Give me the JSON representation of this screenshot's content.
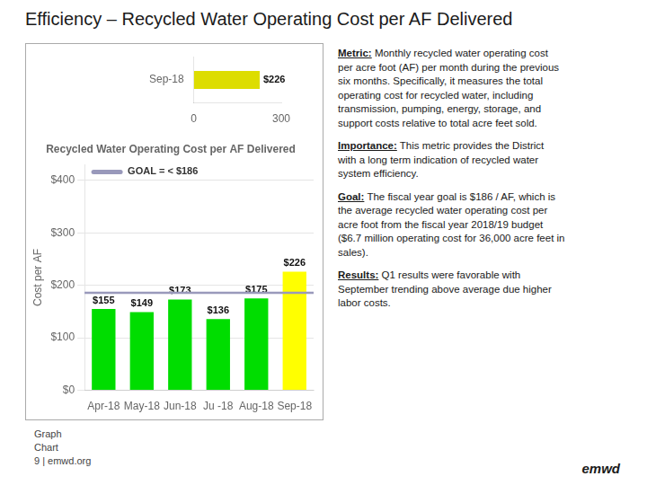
{
  "title": "Efficiency – Recycled Water Operating Cost per AF Delivered",
  "chart_data": [
    {
      "type": "bar",
      "title": "Recycled Water Operating Cost per AF Delivered",
      "categories": [
        "Apr-18",
        "May-18",
        "Jun-18",
        "Ju -18",
        "Aug-18",
        "Sep-18"
      ],
      "values": [
        155,
        149,
        173,
        136,
        175,
        226
      ],
      "value_labels": [
        "$155",
        "$149",
        "$173",
        "$136",
        "$175",
        "$226"
      ],
      "data_labels": true,
      "colors": [
        "#00dd00",
        "#00dd00",
        "#00dd00",
        "#00dd00",
        "#00dd00",
        "#ffff00"
      ],
      "ylabel": "Cost per AF",
      "ylim": [
        0,
        430
      ],
      "yticks": [
        {
          "value": 0,
          "label": "$0"
        },
        {
          "value": 100,
          "label": "$100"
        },
        {
          "value": 200,
          "label": "$200"
        },
        {
          "value": 300,
          "label": "$300"
        },
        {
          "value": 400,
          "label": "$400"
        }
      ],
      "grid": true,
      "goal": {
        "value": 186,
        "label": "GOAL = < $186",
        "color": "#9999bb"
      }
    },
    {
      "type": "bar",
      "orientation": "horizontal",
      "categories": [
        "Sep-18"
      ],
      "values": [
        226
      ],
      "value_labels": [
        "$226"
      ],
      "data_labels": true,
      "color": "#dddd00",
      "xlim": [
        0,
        300
      ],
      "xticks": [
        0,
        300
      ],
      "grid": false
    }
  ],
  "annotations": [
    {
      "label": "Metric:",
      "text": "Monthly recycled water operating cost\nper acre foot (AF) per month during the previous\nsix months. Specifically, it measures the total\noperating cost for recycled water, including\ntransmission, pumping, energy, storage, and\nsupport costs relative to total acre feet sold."
    },
    {
      "label": "Importance:",
      "text": "This metric provides the District\nwith a long term indication of recycled water\nsystem efficiency."
    },
    {
      "label": "Goal:",
      "text": "The fiscal year goal is $186 / AF, which is\nthe average recycled water operating cost per\nacre foot from the fiscal year 2018/19 budget\n($6.7 million operating cost for 36,000 acre feet in\nsales)."
    },
    {
      "label": "Results:",
      "text": "Q1 results were favorable with\nSeptember trending above average due higher\nlabor costs."
    }
  ],
  "footer": [
    "Graph",
    "Chart",
    "9  |  emwd.org",
    "emwd"
  ]
}
